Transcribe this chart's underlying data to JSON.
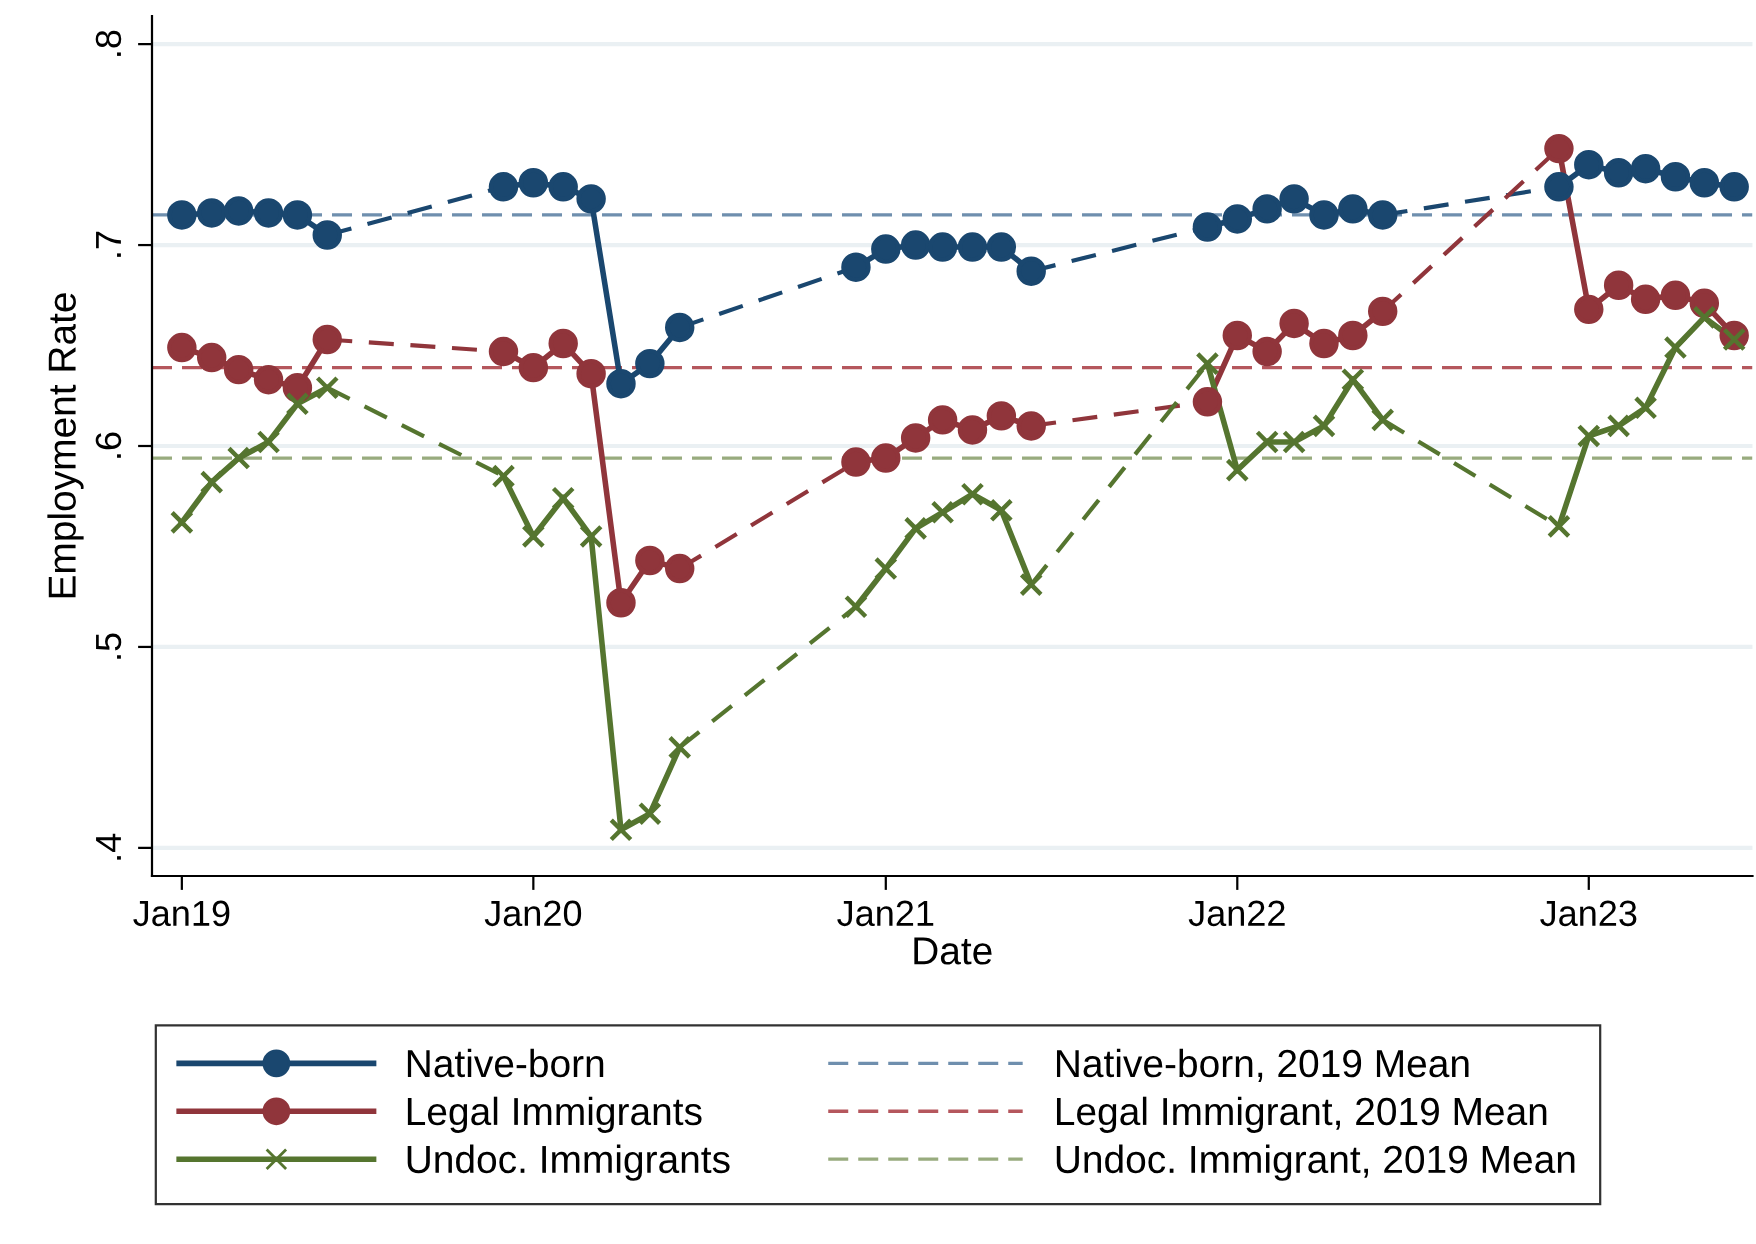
{
  "chart_data": {
    "type": "line",
    "xlabel": "Date",
    "ylabel": "Employment Rate",
    "x": [
      "2019-01",
      "2019-02",
      "2019-03",
      "2019-04",
      "2019-05",
      "2019-06",
      "2019-12",
      "2020-01",
      "2020-02",
      "2020-03",
      "2020-04",
      "2020-05",
      "2020-06",
      "2020-12",
      "2021-01",
      "2021-02",
      "2021-03",
      "2021-04",
      "2021-05",
      "2021-06",
      "2021-12",
      "2022-01",
      "2022-02",
      "2022-03",
      "2022-04",
      "2022-05",
      "2022-06",
      "2022-12",
      "2023-01",
      "2023-02",
      "2023-03",
      "2023-04",
      "2023-05",
      "2023-06"
    ],
    "series": [
      {
        "name": "Native-born",
        "color": "#1a476f",
        "marker": "circle",
        "values": [
          0.715,
          0.716,
          0.717,
          0.716,
          0.715,
          0.705,
          0.729,
          0.731,
          0.729,
          0.723,
          0.631,
          0.641,
          0.659,
          0.689,
          0.698,
          0.7,
          0.699,
          0.699,
          0.699,
          0.687,
          0.709,
          0.713,
          0.718,
          0.723,
          0.715,
          0.718,
          0.715,
          0.729,
          0.74,
          0.736,
          0.738,
          0.734,
          0.731,
          0.729
        ]
      },
      {
        "name": "Legal Immigrants",
        "color": "#90353b",
        "marker": "circle",
        "values": [
          0.649,
          0.644,
          0.638,
          0.633,
          0.629,
          0.653,
          0.647,
          0.639,
          0.651,
          0.636,
          0.522,
          0.543,
          0.539,
          0.592,
          0.594,
          0.604,
          0.613,
          0.608,
          0.615,
          0.61,
          0.622,
          0.655,
          0.647,
          0.661,
          0.651,
          0.655,
          0.667,
          0.748,
          0.668,
          0.68,
          0.673,
          0.675,
          0.671,
          0.655
        ]
      },
      {
        "name": "Undoc. Immigrants",
        "color": "#55752f",
        "marker": "cross",
        "values": [
          0.562,
          0.582,
          0.594,
          0.602,
          0.621,
          0.629,
          0.585,
          0.555,
          0.574,
          0.555,
          0.409,
          0.417,
          0.45,
          0.52,
          0.539,
          0.559,
          0.567,
          0.576,
          0.568,
          0.531,
          0.641,
          0.588,
          0.602,
          0.602,
          0.61,
          0.633,
          0.613,
          0.56,
          0.605,
          0.61,
          0.619,
          0.649,
          0.664,
          0.653
        ]
      }
    ],
    "ref_lines": [
      {
        "axis": "y",
        "value": 0.715,
        "label": "Native-born, 2019 Mean",
        "color": "#6f8fae",
        "line_style": "dashed"
      },
      {
        "axis": "y",
        "value": 0.639,
        "label": "Legal Immigrant, 2019 Mean",
        "color": "#b5575d",
        "line_style": "dashed"
      },
      {
        "axis": "y",
        "value": 0.594,
        "label": "Undoc. Immigrant, 2019 Mean",
        "color": "#98ab7e",
        "line_style": "dashed"
      }
    ],
    "xlim": [
      "2018-12-01",
      "2023-06-20"
    ],
    "xticks": [
      {
        "value": "2019-01",
        "label": "Jan19"
      },
      {
        "value": "2020-01",
        "label": "Jan20"
      },
      {
        "value": "2021-01",
        "label": "Jan21"
      },
      {
        "value": "2022-01",
        "label": "Jan22"
      },
      {
        "value": "2023-01",
        "label": "Jan23"
      }
    ],
    "ylim": [
      0.386,
      0.814
    ],
    "yticks": [
      {
        "value": 0.4,
        "label": ".4"
      },
      {
        "value": 0.5,
        "label": ".5"
      },
      {
        "value": 0.6,
        "label": ".6"
      },
      {
        "value": 0.7,
        "label": ".7"
      },
      {
        "value": 0.8,
        "label": ".8"
      }
    ],
    "grid": "y",
    "legend": "bottom",
    "line_style": "solid"
  }
}
